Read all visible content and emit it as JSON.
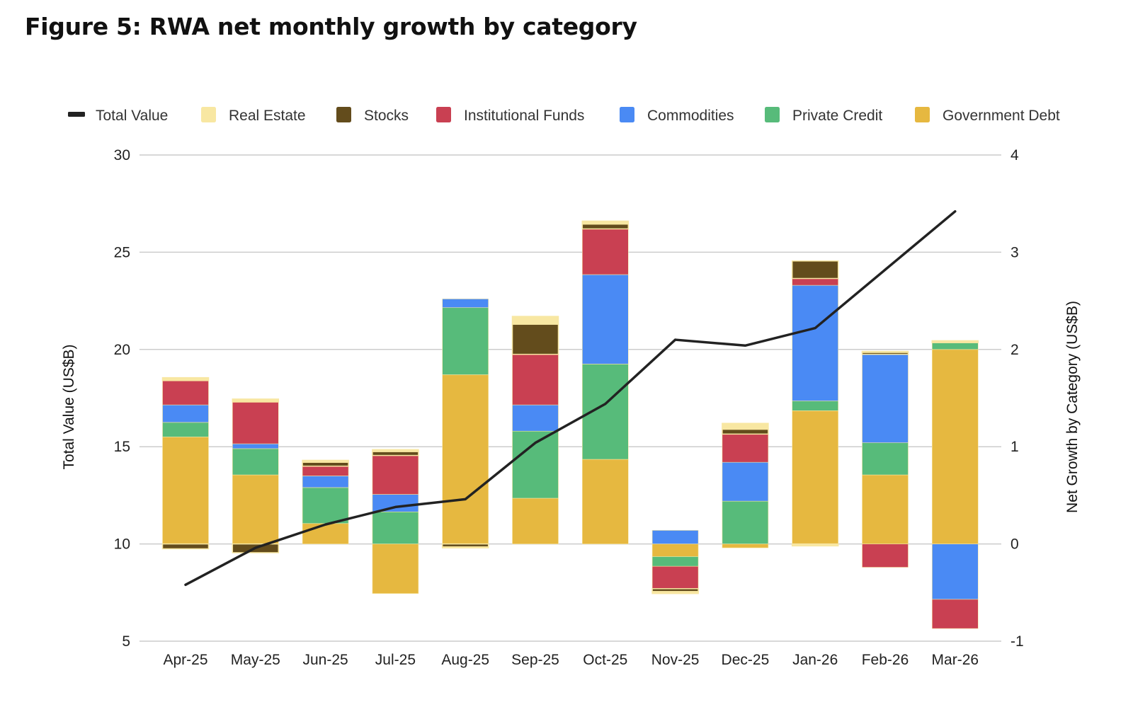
{
  "figure": {
    "title": "Figure 5: RWA net monthly growth by category"
  },
  "chart_data": {
    "type": "bar",
    "subtype": "stacked-bar-with-line",
    "title": "Figure 5: RWA net monthly growth by category",
    "categories": [
      "Apr-25",
      "May-25",
      "Jun-25",
      "Jul-25",
      "Aug-25",
      "Sep-25",
      "Oct-25",
      "Nov-25",
      "Dec-25",
      "Jan-26",
      "Feb-26",
      "Mar-26"
    ],
    "left_axis": {
      "label": "Total Value (US$B)",
      "range": [
        5,
        30
      ],
      "ticks": [
        5,
        10,
        15,
        20,
        25,
        30
      ]
    },
    "right_axis": {
      "label": "Net Growth by Category (US$B)",
      "range": [
        -1,
        4
      ],
      "ticks": [
        -1,
        0,
        1,
        2,
        3,
        4
      ]
    },
    "grid": true,
    "legend_position": "top",
    "legend": [
      "Total Value",
      "Real Estate",
      "Stocks",
      "Institutional Funds",
      "Commodities",
      "Private Credit",
      "Government Debt"
    ],
    "line_series": {
      "name": "Total Value",
      "axis": "left",
      "color": "#222222",
      "values": [
        7.9,
        9.8,
        11.0,
        11.9,
        12.3,
        15.2,
        17.2,
        20.5,
        20.2,
        21.1,
        24.1,
        27.1
      ]
    },
    "bar_series": [
      {
        "name": "Government Debt",
        "axis": "right",
        "color": "#E6B840",
        "values": [
          1.1,
          0.71,
          0.21,
          -0.51,
          1.74,
          0.47,
          0.87,
          -0.13,
          -0.04,
          1.37,
          0.71,
          2.0
        ]
      },
      {
        "name": "Private Credit",
        "axis": "right",
        "color": "#57BB7A",
        "values": [
          0.15,
          0.27,
          0.37,
          0.33,
          0.69,
          0.69,
          0.98,
          -0.1,
          0.44,
          0.1,
          0.33,
          0.07
        ]
      },
      {
        "name": "Commodities",
        "axis": "right",
        "color": "#4A8AF4",
        "values": [
          0.18,
          0.05,
          0.12,
          0.18,
          0.09,
          0.27,
          0.92,
          0.14,
          0.4,
          1.19,
          0.91,
          -0.57
        ]
      },
      {
        "name": "Institutional Funds",
        "axis": "right",
        "color": "#C94052",
        "values": [
          0.25,
          0.43,
          0.1,
          0.4,
          0.0,
          0.52,
          0.47,
          -0.23,
          0.29,
          0.07,
          -0.24,
          -0.3
        ]
      },
      {
        "name": "Stocks",
        "axis": "right",
        "color": "#634C1C",
        "values": [
          -0.05,
          -0.09,
          0.04,
          0.04,
          -0.03,
          0.31,
          0.05,
          -0.03,
          0.05,
          0.18,
          0.02,
          0.01
        ]
      },
      {
        "name": "Real Estate",
        "axis": "right",
        "color": "#F8E7A2",
        "values": [
          0.03,
          0.03,
          0.02,
          0.02,
          -0.01,
          0.08,
          0.03,
          -0.02,
          0.06,
          -0.02,
          0.01,
          0.01
        ]
      }
    ],
    "colors": {
      "total_value": "#222222",
      "real_estate": "#F8E7A2",
      "stocks": "#634C1C",
      "institutional_funds": "#C94052",
      "commodities": "#4A8AF4",
      "private_credit": "#57BB7A",
      "government_debt": "#E6B840",
      "gridline": "#CCCCCC"
    }
  }
}
